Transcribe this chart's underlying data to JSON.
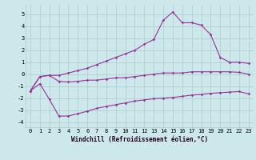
{
  "xlabel": "Windchill (Refroidissement éolien,°C)",
  "x_hours": [
    0,
    1,
    2,
    3,
    4,
    5,
    6,
    7,
    8,
    9,
    10,
    11,
    12,
    13,
    14,
    15,
    16,
    17,
    18,
    19,
    20,
    21,
    22,
    23
  ],
  "line1": [
    -1.4,
    -0.2,
    -0.1,
    -0.1,
    0.1,
    0.3,
    0.5,
    0.8,
    1.1,
    1.4,
    1.7,
    2.0,
    2.5,
    2.9,
    4.5,
    5.2,
    4.3,
    4.3,
    4.1,
    3.3,
    1.4,
    1.0,
    1.0,
    0.9
  ],
  "line2": [
    -1.4,
    -0.2,
    -0.1,
    -0.6,
    -0.65,
    -0.6,
    -0.5,
    -0.5,
    -0.4,
    -0.3,
    -0.3,
    -0.2,
    -0.1,
    0.0,
    0.1,
    0.1,
    0.1,
    0.2,
    0.2,
    0.2,
    0.2,
    0.2,
    0.15,
    0.0
  ],
  "line3": [
    -1.4,
    -0.8,
    -2.1,
    -3.5,
    -3.5,
    -3.3,
    -3.1,
    -2.85,
    -2.7,
    -2.55,
    -2.4,
    -2.25,
    -2.15,
    -2.05,
    -2.0,
    -1.95,
    -1.85,
    -1.75,
    -1.7,
    -1.6,
    -1.55,
    -1.5,
    -1.45,
    -1.65
  ],
  "line_color": "#993399",
  "bg_color": "#cce8ea",
  "grid_color": "#aacccc",
  "ylim": [
    -4.5,
    5.8
  ],
  "yticks": [
    -4,
    -3,
    -2,
    -1,
    0,
    1,
    2,
    3,
    4,
    5
  ],
  "marker": "D",
  "markersize": 1.8,
  "linewidth": 0.8,
  "xlabel_fontsize": 5.5,
  "tick_fontsize": 5.0
}
